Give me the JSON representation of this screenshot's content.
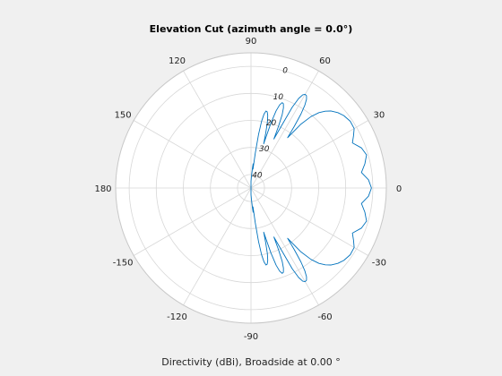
{
  "chart_data": {
    "type": "line",
    "subtype": "polar",
    "title": "Elevation Cut (azimuth angle = 0.0°)",
    "caption": "Directivity (dBi), Broadside at 0.00 °",
    "angle_unit": "degrees",
    "angle_ticks": [
      "0",
      "30",
      "60",
      "90",
      "120",
      "150",
      "180",
      "-150",
      "-120",
      "-90",
      "-60",
      "-30"
    ],
    "angle_tick_values": [
      0,
      30,
      60,
      90,
      120,
      150,
      180,
      -150,
      -120,
      -90,
      -60,
      -30
    ],
    "radial_ticks": [
      "0",
      "10",
      "20",
      "30",
      "40"
    ],
    "radial_tick_values": [
      0,
      -10,
      -20,
      -30,
      -40
    ],
    "radial_range_dbi": [
      -45,
      5
    ],
    "grid": true,
    "series": [
      {
        "color": "#0072bd",
        "angles": [
          0,
          4,
          8,
          12,
          16,
          20,
          24,
          27,
          30,
          34,
          38,
          41,
          44,
          46,
          48,
          50,
          52,
          54,
          55,
          56,
          57,
          58,
          59,
          60,
          61,
          62,
          63,
          64,
          65,
          66,
          67,
          68,
          69,
          70,
          71,
          72,
          73,
          74,
          75,
          76,
          77,
          78,
          79,
          80,
          81,
          82,
          83,
          84,
          85,
          86,
          87,
          88,
          89,
          90,
          -90,
          -89,
          -88,
          -87,
          -86,
          -85,
          -84,
          -83,
          -82,
          -81,
          -80,
          -79,
          -78,
          -77,
          -76,
          -75,
          -74,
          -73,
          -72,
          -71,
          -70,
          -69,
          -68,
          -67,
          -66,
          -65,
          -64,
          -63,
          -62,
          -61,
          -60,
          -59,
          -58,
          -57,
          -56,
          -55,
          -54,
          -52,
          -50,
          -48,
          -46,
          -44,
          -41,
          -38,
          -34,
          -30,
          -27,
          -24,
          -20,
          -16,
          -12,
          -8,
          -4,
          0
        ],
        "values": [
          -0.5,
          -1.5,
          -3.8,
          -2.0,
          -0.6,
          -1.6,
          -4.0,
          -2.5,
          -1.0,
          -0.8,
          -1.5,
          -2.5,
          -4.0,
          -5.5,
          -7.5,
          -10.5,
          -15.0,
          -22.0,
          -17.0,
          -12.0,
          -8.5,
          -6.3,
          -5.2,
          -5.0,
          -5.6,
          -7.5,
          -11.5,
          -20.0,
          -25.0,
          -20.0,
          -15.5,
          -13.0,
          -11.6,
          -11.4,
          -12.5,
          -15.0,
          -20.0,
          -28.0,
          -24.0,
          -20.0,
          -17.5,
          -16.2,
          -16.0,
          -17.2,
          -20.0,
          -25.0,
          -32.0,
          -38.0,
          -36.0,
          -38.0,
          -40.0,
          -41.0,
          -42.0,
          -42.5,
          -42.5,
          -42.0,
          -41.0,
          -40.0,
          -38.0,
          -36.0,
          -38.0,
          -32.0,
          -25.0,
          -20.0,
          -17.2,
          -16.0,
          -16.2,
          -17.5,
          -20.0,
          -24.0,
          -28.0,
          -20.0,
          -15.0,
          -12.5,
          -11.4,
          -11.6,
          -13.0,
          -15.5,
          -20.0,
          -25.0,
          -20.0,
          -11.5,
          -7.5,
          -5.6,
          -5.0,
          -5.2,
          -6.3,
          -8.5,
          -12.0,
          -17.0,
          -22.0,
          -15.0,
          -10.5,
          -7.5,
          -5.5,
          -4.0,
          -2.5,
          -1.5,
          -0.8,
          -1.0,
          -2.5,
          -4.0,
          -1.6,
          -0.6,
          -2.0,
          -3.8,
          -1.5,
          -0.5
        ]
      }
    ]
  }
}
